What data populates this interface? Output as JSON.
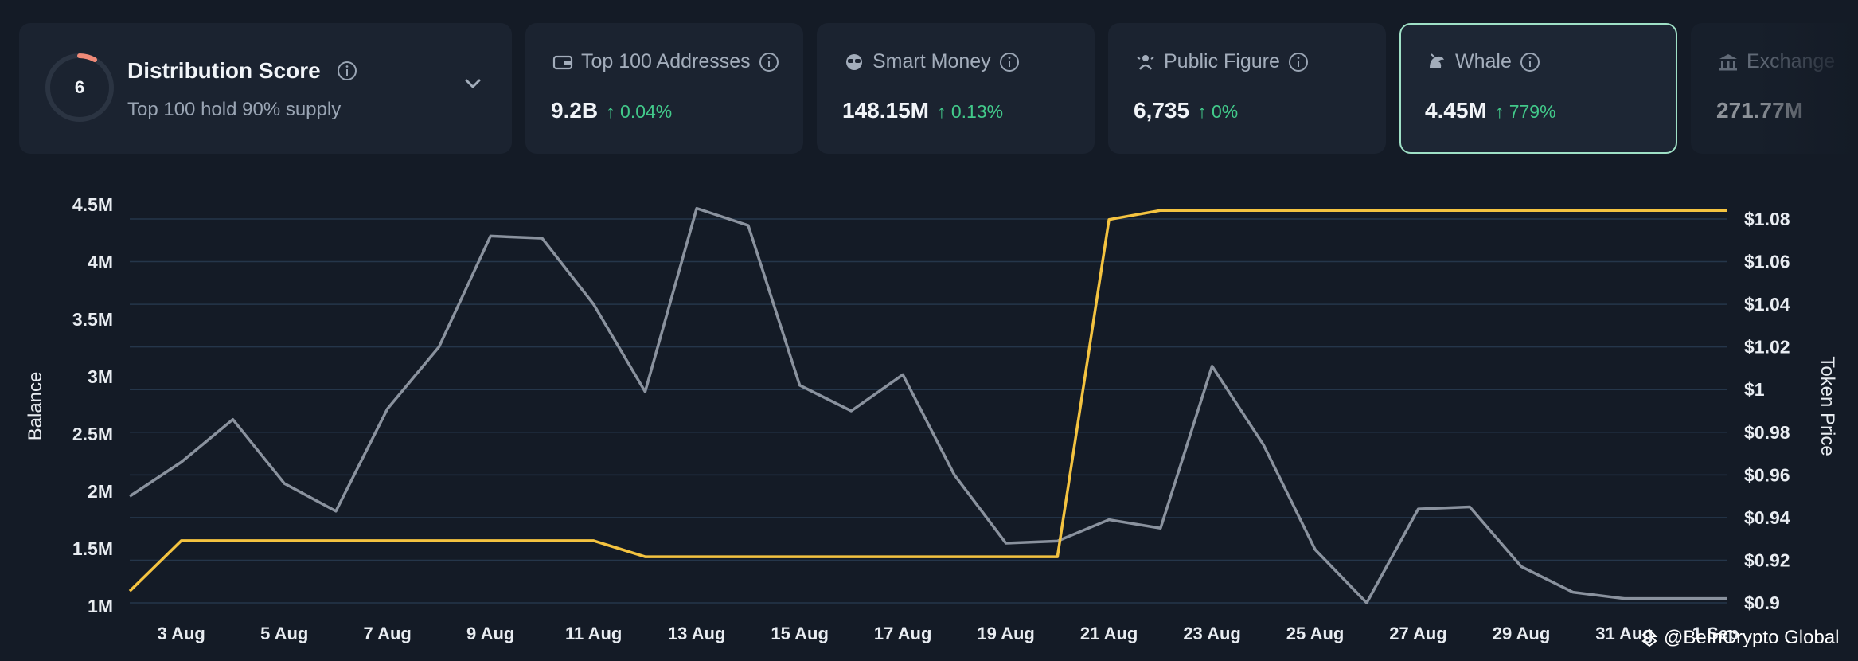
{
  "cards": {
    "distribution": {
      "score": "6",
      "title": "Distribution Score",
      "subtitle": "Top 100 hold 90% supply"
    },
    "items": [
      {
        "label": "Top 100 Addresses",
        "value": "9.2B",
        "change": "0.04%",
        "icon": "wallet-icon"
      },
      {
        "label": "Smart Money",
        "value": "148.15M",
        "change": "0.13%",
        "icon": "sunglasses-icon"
      },
      {
        "label": "Public Figure",
        "value": "6,735",
        "change": "0%",
        "icon": "person-icon"
      },
      {
        "label": "Whale",
        "value": "4.45M",
        "change": "779%",
        "icon": "whale-icon"
      },
      {
        "label": "Exchange",
        "value": "271.77M",
        "change": "",
        "icon": "bank-icon"
      }
    ]
  },
  "colors": {
    "balance_line": "#f4c340",
    "price_line": "#8a929e",
    "positive": "#42c98a",
    "active_border": "#9fe0c6"
  },
  "chart_data": {
    "type": "line",
    "ylabel": "Balance",
    "y2label": "Token Price",
    "ylim": [
      1000000,
      4500000
    ],
    "y2lim": [
      0.9,
      1.08
    ],
    "y_ticks": [
      "1M",
      "1.5M",
      "2M",
      "2.5M",
      "3M",
      "3.5M",
      "4M",
      "4.5M"
    ],
    "y2_ticks": [
      "$0.9",
      "$0.92",
      "$0.94",
      "$0.96",
      "$0.98",
      "$1",
      "$1.02",
      "$1.04",
      "$1.06",
      "$1.08"
    ],
    "x_tick_labels": [
      "3 Aug",
      "5 Aug",
      "7 Aug",
      "9 Aug",
      "11 Aug",
      "13 Aug",
      "15 Aug",
      "17 Aug",
      "19 Aug",
      "21 Aug",
      "23 Aug",
      "25 Aug",
      "27 Aug",
      "29 Aug",
      "31 Aug",
      "1 Sep"
    ],
    "grid": true,
    "series": [
      {
        "name": "Whale",
        "axis": "left",
        "values": [
          1130000,
          1570000,
          1570000,
          1570000,
          1570000,
          1570000,
          1570000,
          1570000,
          1570000,
          1570000,
          1430000,
          1430000,
          1430000,
          1430000,
          1430000,
          1430000,
          1430000,
          1430000,
          1430000,
          4370000,
          4450000,
          4450000,
          4450000,
          4450000,
          4450000,
          4450000,
          4450000,
          4450000,
          4450000,
          4450000,
          4450000,
          4450000
        ]
      },
      {
        "axis": "right",
        "values": [
          0.95,
          0.966,
          0.986,
          0.956,
          0.943,
          0.991,
          1.02,
          1.072,
          1.071,
          1.04,
          0.999,
          1.085,
          1.077,
          1.002,
          0.99,
          1.007,
          0.96,
          0.928,
          0.929,
          0.939,
          0.935,
          1.011,
          0.974,
          0.925,
          0.9,
          0.944,
          0.945,
          0.917,
          0.905,
          0.902,
          0.902,
          0.902
        ]
      }
    ]
  },
  "watermark": "@BeInCrypto Global"
}
